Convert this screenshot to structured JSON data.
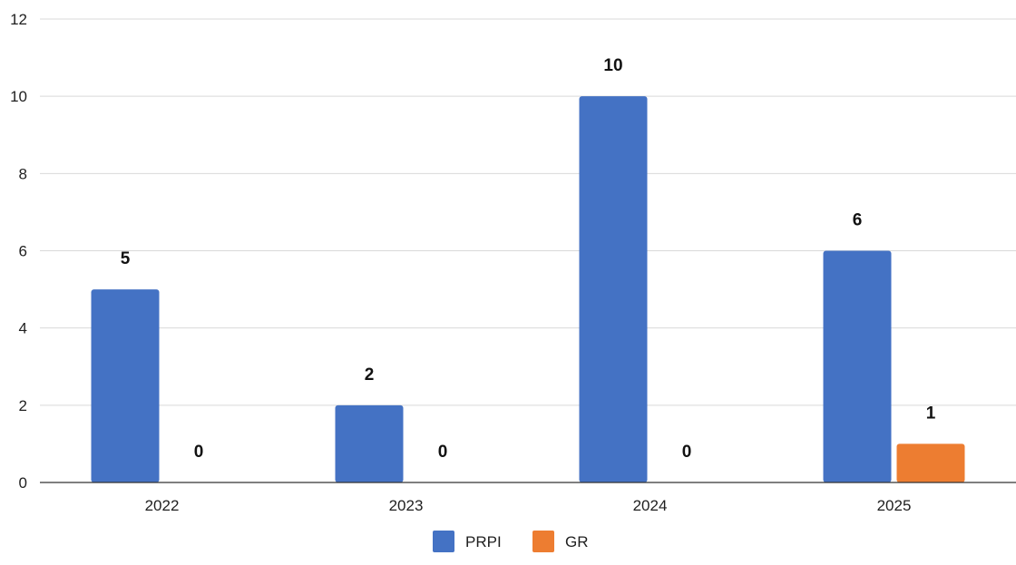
{
  "chart_data": {
    "type": "bar",
    "categories": [
      "2022",
      "2023",
      "2024",
      "2025"
    ],
    "series": [
      {
        "name": "PRPI",
        "values": [
          5,
          2,
          10,
          6
        ],
        "color": "#4472C4"
      },
      {
        "name": "GR",
        "values": [
          0,
          0,
          0,
          1
        ],
        "color": "#ED7D31"
      }
    ],
    "ylim": [
      0,
      12
    ],
    "yticks": [
      0,
      2,
      4,
      6,
      8,
      10,
      12
    ],
    "grid": true,
    "legend_position": "bottom-center",
    "data_labels": true
  }
}
